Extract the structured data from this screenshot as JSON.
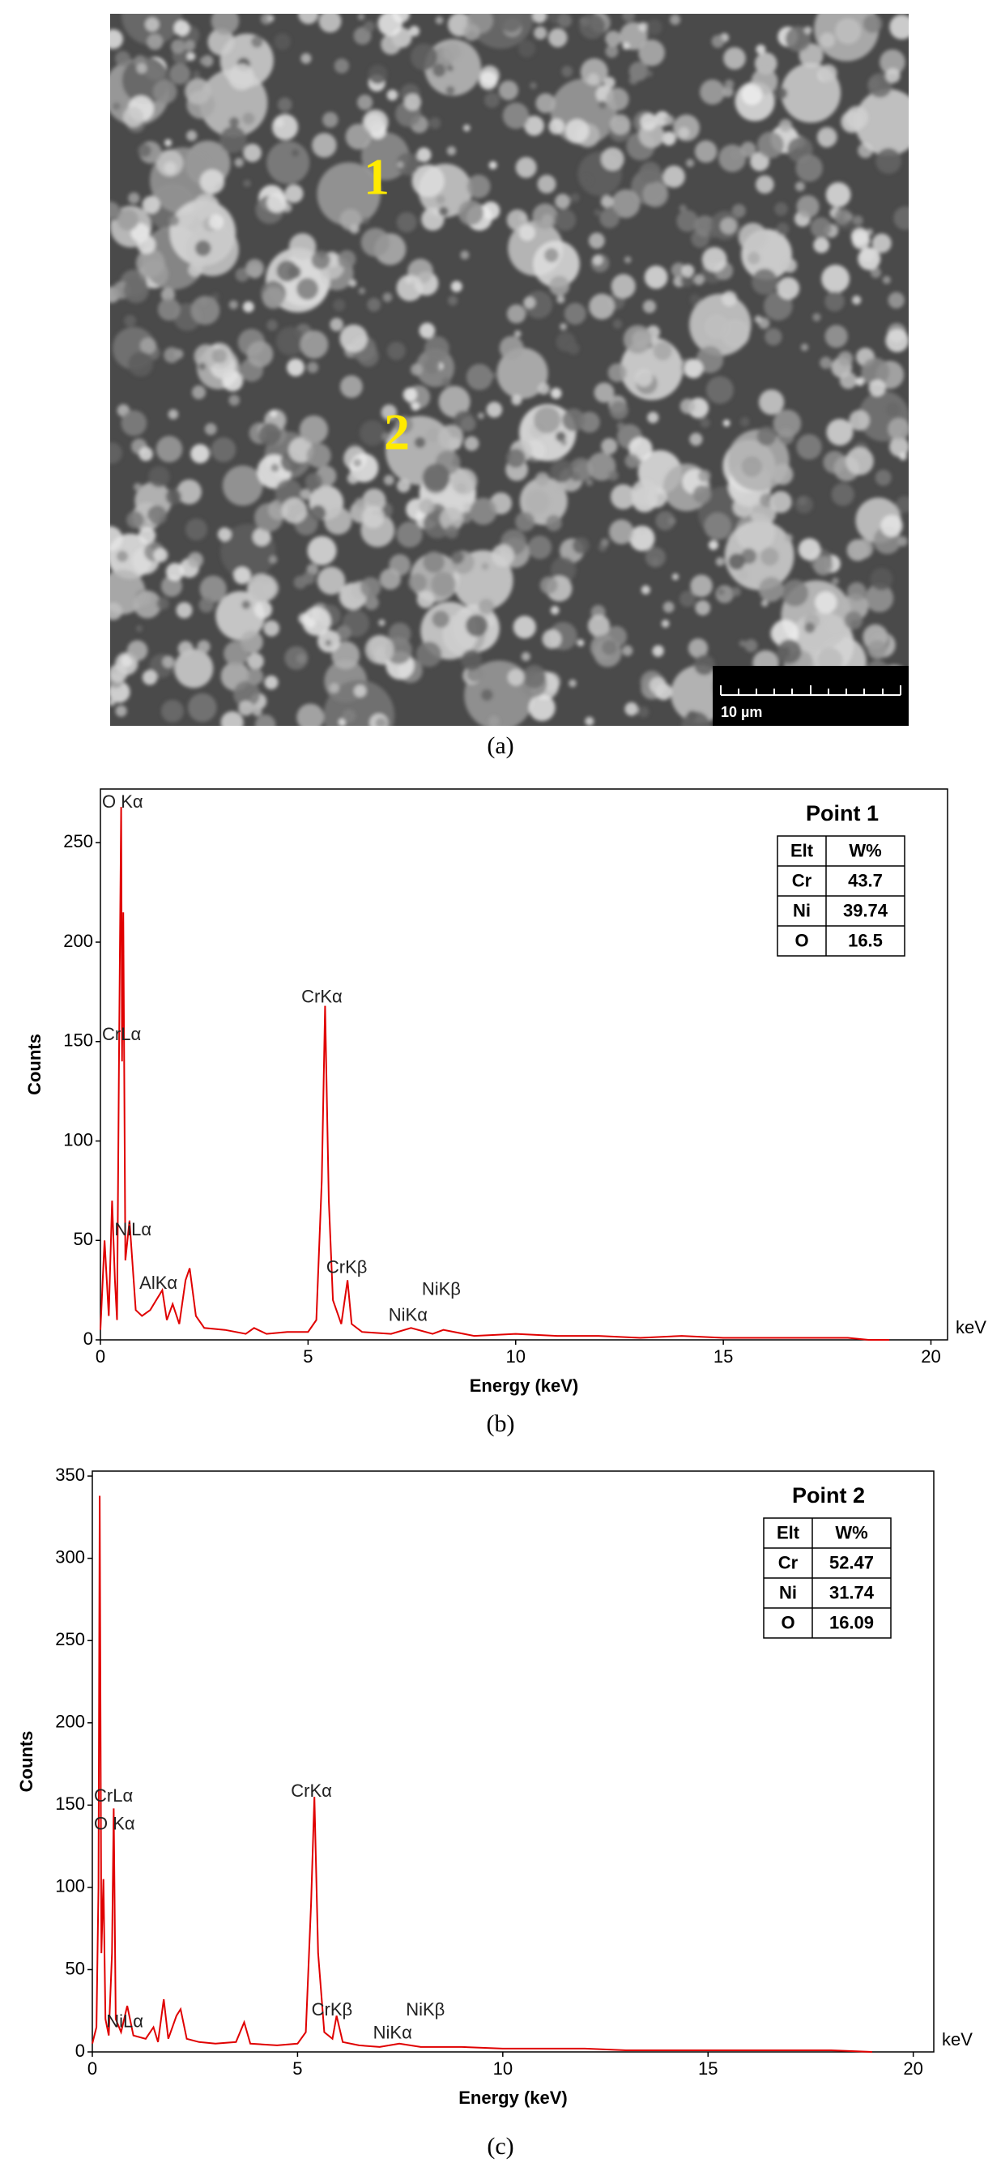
{
  "figure_a": {
    "markers": [
      "1",
      "2"
    ],
    "scale_bar": "10 µm",
    "caption": "(a)"
  },
  "chart_data": [
    {
      "type": "line",
      "caption": "(b)",
      "x_label": "Energy (keV)",
      "y_label": "Counts",
      "x_unit": "keV",
      "color": "#e00000",
      "xlim": [
        0,
        20.4
      ],
      "ylim": [
        0,
        277
      ],
      "xticks": [
        0,
        5,
        10,
        15,
        20
      ],
      "yticks": [
        0,
        50,
        100,
        150,
        200,
        250
      ],
      "x": [
        0,
        0.1,
        0.2,
        0.28,
        0.35,
        0.4,
        0.45,
        0.5,
        0.52,
        0.55,
        0.6,
        0.7,
        0.85,
        1.0,
        1.2,
        1.49,
        1.6,
        1.74,
        1.9,
        2.05,
        2.15,
        2.3,
        2.5,
        3.0,
        3.5,
        3.7,
        4.0,
        4.5,
        5.0,
        5.2,
        5.33,
        5.41,
        5.5,
        5.6,
        5.8,
        5.95,
        6.05,
        6.3,
        7.0,
        7.48,
        8.0,
        8.26,
        9,
        10,
        11,
        12,
        13,
        14,
        15,
        16,
        17,
        18,
        18.5,
        19
      ],
      "values": [
        5,
        50,
        12,
        70,
        30,
        10,
        150,
        268,
        140,
        215,
        40,
        60,
        15,
        12,
        15,
        25,
        10,
        18,
        8,
        30,
        36,
        12,
        6,
        5,
        3,
        6,
        3,
        4,
        4,
        10,
        80,
        168,
        70,
        20,
        8,
        30,
        8,
        4,
        3,
        6,
        3,
        5,
        2,
        3,
        2,
        2,
        1,
        2,
        1,
        1,
        1,
        1,
        0,
        0
      ],
      "annotations": [
        {
          "text": "O Kα",
          "x": 0,
          "y": 270
        },
        {
          "text": "CrLα",
          "x": 0,
          "y": 153
        },
        {
          "text": "NiLα",
          "x": 0.3,
          "y": 55
        },
        {
          "text": "AlKα",
          "x": 0.9,
          "y": 28
        },
        {
          "text": "CrKα",
          "x": 4.8,
          "y": 172
        },
        {
          "text": "CrKβ",
          "x": 5.4,
          "y": 36
        },
        {
          "text": "NiKα",
          "x": 6.9,
          "y": 12
        },
        {
          "text": "NiKβ",
          "x": 7.7,
          "y": 25
        }
      ],
      "table": {
        "title": "Point 1",
        "header": [
          "Elt",
          "W%"
        ],
        "rows": [
          [
            "Cr",
            43.7
          ],
          [
            "Ni",
            39.74
          ],
          [
            "O",
            16.5
          ]
        ]
      }
    },
    {
      "type": "line",
      "caption": "(c)",
      "x_label": "Energy (keV)",
      "y_label": "Counts",
      "x_unit": "keV",
      "color": "#e00000",
      "xlim": [
        0,
        20.5
      ],
      "ylim": [
        0,
        353
      ],
      "xticks": [
        0,
        5,
        10,
        15,
        20
      ],
      "yticks": [
        0,
        50,
        100,
        150,
        200,
        250,
        300,
        350
      ],
      "x": [
        0,
        0.1,
        0.15,
        0.18,
        0.22,
        0.27,
        0.32,
        0.4,
        0.48,
        0.52,
        0.57,
        0.7,
        0.85,
        1.0,
        1.3,
        1.49,
        1.6,
        1.74,
        1.85,
        2.05,
        2.15,
        2.3,
        2.6,
        3.0,
        3.5,
        3.7,
        3.85,
        4.5,
        5.0,
        5.2,
        5.33,
        5.41,
        5.5,
        5.65,
        5.85,
        5.95,
        6.1,
        6.5,
        7.0,
        7.48,
        8.0,
        9,
        10,
        11,
        12,
        13,
        14,
        15,
        16,
        17,
        18,
        19
      ],
      "values": [
        5,
        15,
        100,
        338,
        60,
        105,
        20,
        10,
        60,
        148,
        20,
        12,
        28,
        10,
        8,
        15,
        6,
        32,
        8,
        22,
        26,
        8,
        6,
        5,
        6,
        18,
        5,
        4,
        5,
        12,
        90,
        155,
        60,
        12,
        8,
        22,
        6,
        4,
        3,
        5,
        3,
        3,
        2,
        2,
        2,
        1,
        1,
        1,
        1,
        1,
        1,
        0
      ],
      "annotations": [
        {
          "text": "CrLα",
          "x": 0,
          "y": 155
        },
        {
          "text": "O Kα",
          "x": 0,
          "y": 138
        },
        {
          "text": "NiLα",
          "x": 0.3,
          "y": 18
        },
        {
          "text": "CrKα",
          "x": 4.8,
          "y": 158
        },
        {
          "text": "CrKβ",
          "x": 5.3,
          "y": 25
        },
        {
          "text": "NiKα",
          "x": 6.8,
          "y": 11
        },
        {
          "text": "NiKβ",
          "x": 7.6,
          "y": 25
        }
      ],
      "table": {
        "title": "Point 2",
        "header": [
          "Elt",
          "W%"
        ],
        "rows": [
          [
            "Cr",
            52.47
          ],
          [
            "Ni",
            31.74
          ],
          [
            "O",
            16.09
          ]
        ]
      }
    }
  ]
}
